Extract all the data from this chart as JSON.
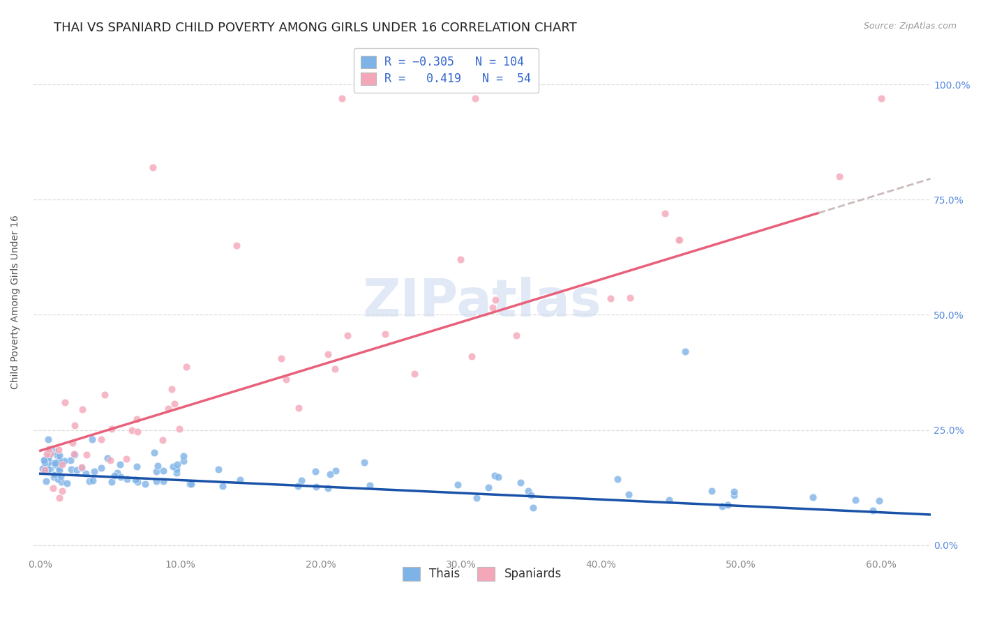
{
  "title": "THAI VS SPANIARD CHILD POVERTY AMONG GIRLS UNDER 16 CORRELATION CHART",
  "source": "Source: ZipAtlas.com",
  "ylabel": "Child Poverty Among Girls Under 16",
  "xticklabels": [
    "0.0%",
    "10.0%",
    "20.0%",
    "30.0%",
    "40.0%",
    "50.0%",
    "60.0%"
  ],
  "yticklabels": [
    "0.0%",
    "25.0%",
    "50.0%",
    "75.0%",
    "100.0%"
  ],
  "xlim": [
    -0.005,
    0.635
  ],
  "ylim": [
    -0.025,
    1.08
  ],
  "thai_R": -0.305,
  "thai_N": 104,
  "spaniard_R": 0.419,
  "spaniard_N": 54,
  "thai_color": "#7eb3e8",
  "spaniard_color": "#f4a7b9",
  "thai_line_color": "#1a52a8",
  "spaniard_line_color": "#e8607a",
  "spaniard_dash_color": "#ccbbbb",
  "legend_labels": [
    "Thais",
    "Spaniards"
  ],
  "watermark": "ZIPatlas",
  "title_fontsize": 13,
  "axis_label_fontsize": 10,
  "tick_fontsize": 10,
  "legend_fontsize": 11,
  "source_fontsize": 9,
  "background_color": "#ffffff",
  "grid_color": "#dddddd",
  "thai_trend_intercept": 0.155,
  "thai_trend_slope": -0.14,
  "spaniard_trend_intercept": 0.205,
  "spaniard_trend_slope": 0.93
}
